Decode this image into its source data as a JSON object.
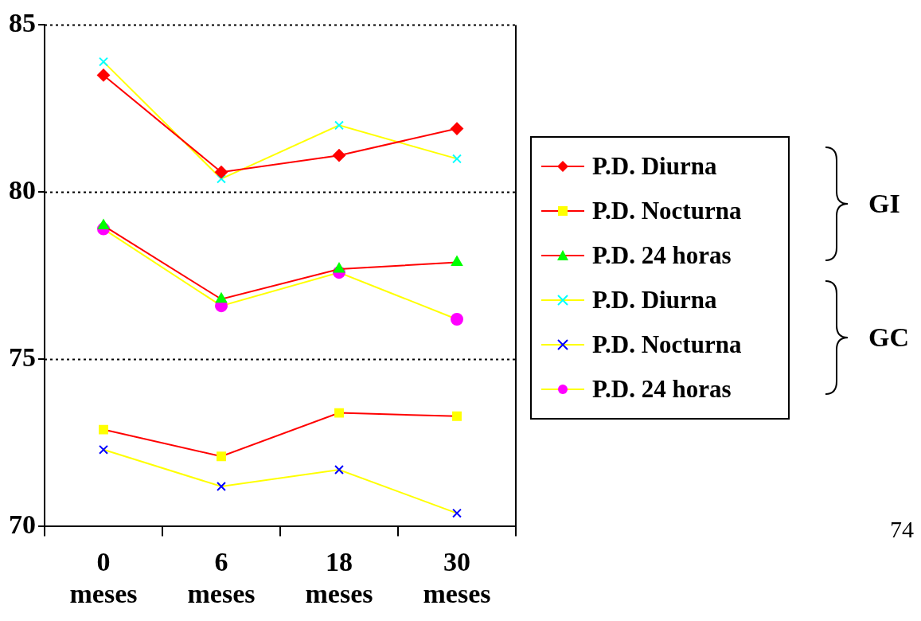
{
  "chart_data": {
    "type": "line",
    "categories": [
      "0 meses",
      "6 meses",
      "18 meses",
      "30 meses"
    ],
    "series": [
      {
        "name": "P.D. Diurna",
        "color": "#ff0000",
        "marker": "diamond",
        "colors": [
          "#ff0000",
          "#ff0000",
          "#ff0000",
          "#ff0000"
        ],
        "values": [
          83.5,
          80.6,
          81.1,
          81.9
        ]
      },
      {
        "name": "P.D. Nocturna",
        "color": "#ff0000",
        "marker": "square",
        "colors": [
          "#ffff00",
          "#ffff00",
          "#ffff00",
          "#ffff00"
        ],
        "values": [
          72.9,
          72.1,
          73.4,
          73.3
        ]
      },
      {
        "name": "P.D. 24 horas",
        "color": "#ff0000",
        "marker": "triangle",
        "colors": [
          "#00ff00",
          "#00ff00",
          "#00ff00",
          "#00ff00"
        ],
        "values": [
          79.0,
          76.8,
          77.7,
          77.9
        ]
      },
      {
        "name": "P.D. Diurna",
        "color": "#ffff00",
        "marker": "cross",
        "colors": [
          "#00ffff",
          "#00ffff",
          "#00ffff",
          "#00ffff"
        ],
        "values": [
          83.9,
          80.4,
          82.0,
          81.0
        ]
      },
      {
        "name": "P.D. Nocturna",
        "color": "#ffff00",
        "marker": "cross",
        "colors": [
          "#0000ff",
          "#0000ff",
          "#0000ff",
          "#0000ff"
        ],
        "values": [
          72.3,
          71.2,
          71.7,
          70.4
        ]
      },
      {
        "name": "P.D. 24 horas",
        "color": "#ffff00",
        "marker": "circle",
        "colors": [
          "#ff00ff",
          "#ff00ff",
          "#ff00ff",
          "#ff00ff"
        ],
        "values": [
          78.9,
          76.6,
          77.6,
          76.2
        ]
      }
    ],
    "ylim": [
      70,
      85
    ],
    "yticks": [
      70,
      75,
      80,
      85
    ],
    "grid": "y",
    "legend": "right",
    "annotations": [
      "GI",
      "GC",
      "74"
    ]
  }
}
